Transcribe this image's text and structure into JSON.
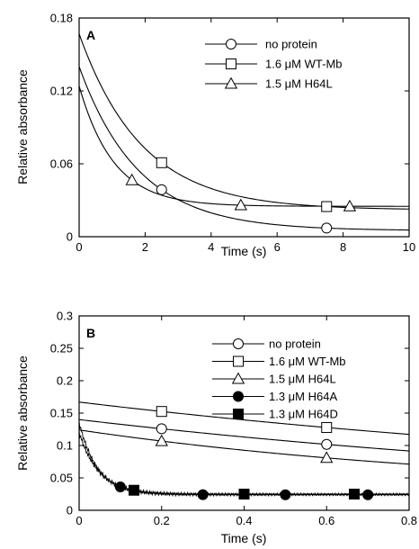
{
  "chart_data": [
    {
      "panel": "A",
      "type": "line",
      "xlabel": "Time (s)",
      "ylabel": "Relative absorbance",
      "xlim": [
        0,
        10
      ],
      "ylim": [
        0,
        0.18
      ],
      "xticks": [
        0,
        2,
        4,
        6,
        8,
        10
      ],
      "yticks": [
        0,
        0.06,
        0.12,
        0.18
      ],
      "xtick_labels": [
        "0",
        "2",
        "4",
        "6",
        "8",
        "10"
      ],
      "ytick_labels": [
        "0",
        "0.06",
        "0.12",
        "0.18"
      ],
      "grid": false,
      "legend_position": "top-right",
      "series": [
        {
          "name": "no protein",
          "marker": "circle-open",
          "model": {
            "a0": 0.14,
            "c": 0.005,
            "tau": 1.8
          },
          "marker_x": [
            2.5,
            7.5
          ],
          "noise": 0
        },
        {
          "name": "1.6 μM WT-Mb",
          "marker": "square-open",
          "model": {
            "a0": 0.167,
            "c": 0.022,
            "tau": 1.9
          },
          "marker_x": [
            2.5,
            7.5
          ],
          "noise": 0
        },
        {
          "name": "1.5 μM H64L",
          "marker": "triangle-open",
          "model": {
            "a0": 0.124,
            "c": 0.025,
            "tau": 1.05
          },
          "marker_x": [
            1.6,
            4.9,
            8.2
          ],
          "noise": 0
        }
      ]
    },
    {
      "panel": "B",
      "type": "line",
      "xlabel": "Time (s)",
      "ylabel": "Relative absorbance",
      "xlim": [
        0,
        0.8
      ],
      "ylim": [
        0,
        0.3
      ],
      "xticks": [
        0,
        0.2,
        0.4,
        0.6,
        0.8
      ],
      "yticks": [
        0,
        0.05,
        0.1,
        0.15,
        0.2,
        0.25,
        0.3
      ],
      "xtick_labels": [
        "0",
        "0.2",
        "0.4",
        "0.6",
        "0.8"
      ],
      "ytick_labels": [
        "0",
        "0.05",
        "0.1",
        "0.15",
        "0.2",
        "0.25",
        "0.3"
      ],
      "grid": false,
      "legend_position": "top-right",
      "series": [
        {
          "name": "no protein",
          "marker": "circle-open",
          "model": {
            "a0": 0.14,
            "c": 0.005,
            "tau": 1.8
          },
          "marker_x": [
            0.2,
            0.6
          ],
          "noise": 0
        },
        {
          "name": "1.6 μM WT-Mb",
          "marker": "square-open",
          "model": {
            "a0": 0.167,
            "c": 0.022,
            "tau": 1.9
          },
          "marker_x": [
            0.2,
            0.6
          ],
          "noise": 0
        },
        {
          "name": "1.5 μM H64L",
          "marker": "triangle-open",
          "model": {
            "a0": 0.124,
            "c": 0.025,
            "tau": 1.05
          },
          "marker_x": [
            0.2,
            0.6
          ],
          "noise": 0
        },
        {
          "name": "1.3 μM H64A",
          "marker": "circle-filled",
          "model": {
            "a0": 0.135,
            "c": 0.024,
            "tau": 0.045
          },
          "marker_x": [
            0.1,
            0.3,
            0.5,
            0.7
          ],
          "noise": 0.004
        },
        {
          "name": "1.3 μM H64D",
          "marker": "square-filled",
          "model": {
            "a0": 0.12,
            "c": 0.025,
            "tau": 0.048
          },
          "marker_x": [
            0.133,
            0.4,
            0.667
          ],
          "noise": 0.004
        }
      ]
    }
  ]
}
